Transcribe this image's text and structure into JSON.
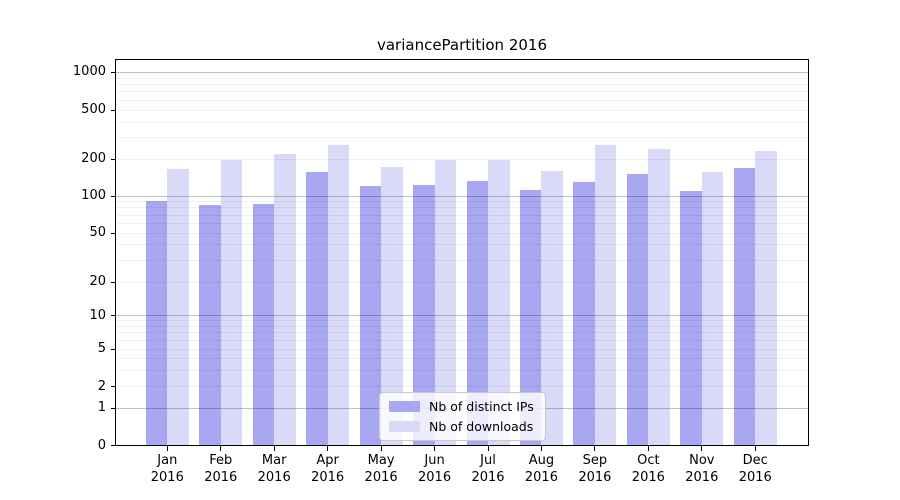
{
  "title": "variancePartition 2016",
  "legend": [
    {
      "label": "Nb of distinct IPs"
    },
    {
      "label": "Nb of downloads"
    }
  ],
  "chart_data": {
    "type": "bar",
    "title": "variancePartition 2016",
    "categories": [
      "Jan 2016",
      "Feb 2016",
      "Mar 2016",
      "Apr 2016",
      "May 2016",
      "Jun 2016",
      "Jul 2016",
      "Aug 2016",
      "Sep 2016",
      "Oct 2016",
      "Nov 2016",
      "Dec 2016"
    ],
    "series": [
      {
        "name": "Nb of distinct IPs",
        "color": "#a7a7f2",
        "values": [
          91,
          84,
          86,
          156,
          120,
          123,
          133,
          113,
          130,
          152,
          109,
          170
        ]
      },
      {
        "name": "Nb of downloads",
        "color": "#d9d9f8",
        "values": [
          165,
          197,
          222,
          260,
          174,
          199,
          197,
          160,
          263,
          243,
          156,
          234
        ]
      }
    ],
    "xlabel": "",
    "ylabel": "",
    "yscale": "symlog",
    "yticks": [
      0,
      1,
      2,
      5,
      10,
      20,
      50,
      100,
      200,
      500,
      1000
    ],
    "ylim": [
      0,
      1300
    ],
    "grid": "horizontal major and minor gridlines, drawn over bars",
    "legend_position": "lower center"
  }
}
